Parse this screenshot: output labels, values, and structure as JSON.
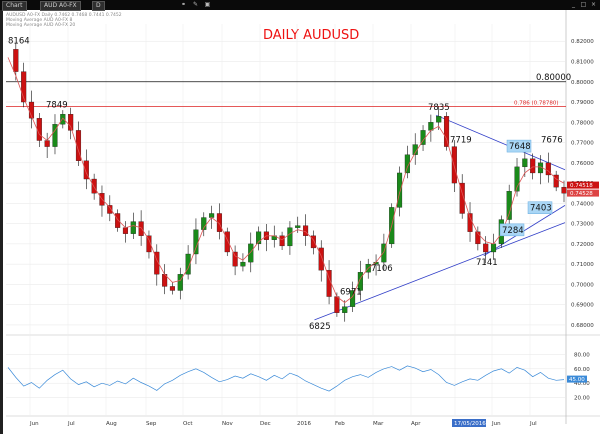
{
  "window": {
    "chart_tab": "Chart",
    "symbol_tab": "AUD A0-FX",
    "interval_tab": "D"
  },
  "header_info": {
    "line1": "AUDUSD A0-FX   Daily   0.7462   0.7468   0.7441   0.7452",
    "line2": "Moving Average   AUD A0-FX 8",
    "line3": "Moving Average   AUD A0-FX 20"
  },
  "chart_data": {
    "type": "candlestick",
    "title": "DAILY AUDUSD",
    "colors": {
      "up": "#1a8a1a",
      "down": "#cc1111",
      "ma": "#dd5555",
      "rsi": "#3a8ad8",
      "title": "#e11111"
    },
    "price_axis": {
      "ticks": [
        "0.82000",
        "0.81000",
        "0.80000",
        "0.79000",
        "0.78000",
        "0.77000",
        "0.76000",
        "0.75000",
        "0.74000",
        "0.73000",
        "0.72000",
        "0.71000",
        "0.70000",
        "0.69000",
        "0.68000"
      ],
      "ylim": [
        0.6775,
        0.8285
      ],
      "current_price_tags": [
        "0.74518",
        "0.74528"
      ]
    },
    "x_axis": {
      "labels": [
        "Jun",
        "Jul",
        "Aug",
        "Sep",
        "Oct",
        "Nov",
        "Dec",
        "2016",
        "Feb",
        "Mar",
        "Apr",
        "May",
        "Jun",
        "Jul"
      ],
      "date_tag": "17/05/2016"
    },
    "horizontal_lines": [
      {
        "label": "0.80000",
        "value": 0.8,
        "color": "#111111"
      },
      {
        "label": "0.786 (0.78780)",
        "value": 0.7878,
        "color": "#dd2222"
      }
    ],
    "annotations": [
      {
        "text": "8164",
        "price": 0.8164,
        "boxed": false
      },
      {
        "text": "7849",
        "price": 0.7849,
        "boxed": false
      },
      {
        "text": "6825",
        "price": 0.6825,
        "boxed": false
      },
      {
        "text": "6971",
        "price": 0.6971,
        "boxed": false
      },
      {
        "text": "7106",
        "price": 0.7106,
        "boxed": false
      },
      {
        "text": "7835",
        "price": 0.7835,
        "boxed": false
      },
      {
        "text": "7719",
        "price": 0.7719,
        "boxed": false
      },
      {
        "text": "7648",
        "price": 0.7648,
        "boxed": true
      },
      {
        "text": "7676",
        "price": 0.7676,
        "boxed": false
      },
      {
        "text": "7403",
        "price": 0.7403,
        "boxed": true
      },
      {
        "text": "7284",
        "price": 0.7284,
        "boxed": true
      },
      {
        "text": "7141",
        "price": 0.7141,
        "boxed": false
      }
    ],
    "ma_path": [
      0.812,
      0.803,
      0.792,
      0.783,
      0.774,
      0.771,
      0.776,
      0.782,
      0.778,
      0.766,
      0.755,
      0.748,
      0.742,
      0.738,
      0.732,
      0.728,
      0.729,
      0.728,
      0.722,
      0.712,
      0.705,
      0.701,
      0.702,
      0.708,
      0.718,
      0.728,
      0.733,
      0.73,
      0.722,
      0.714,
      0.712,
      0.716,
      0.721,
      0.724,
      0.724,
      0.722,
      0.725,
      0.727,
      0.726,
      0.722,
      0.714,
      0.703,
      0.694,
      0.691,
      0.694,
      0.703,
      0.708,
      0.711,
      0.716,
      0.729,
      0.745,
      0.758,
      0.765,
      0.771,
      0.776,
      0.778,
      0.772,
      0.758,
      0.745,
      0.733,
      0.725,
      0.721,
      0.72,
      0.725,
      0.735,
      0.748,
      0.755,
      0.758,
      0.758,
      0.756,
      0.752,
      0.75
    ],
    "price_path": [
      0.816,
      0.805,
      0.79,
      0.782,
      0.771,
      0.768,
      0.779,
      0.784,
      0.776,
      0.761,
      0.752,
      0.745,
      0.739,
      0.735,
      0.728,
      0.725,
      0.731,
      0.724,
      0.716,
      0.705,
      0.699,
      0.697,
      0.705,
      0.715,
      0.727,
      0.733,
      0.735,
      0.726,
      0.716,
      0.709,
      0.711,
      0.72,
      0.726,
      0.722,
      0.724,
      0.719,
      0.728,
      0.729,
      0.724,
      0.718,
      0.707,
      0.694,
      0.686,
      0.689,
      0.697,
      0.706,
      0.71,
      0.711,
      0.72,
      0.738,
      0.755,
      0.764,
      0.769,
      0.776,
      0.78,
      0.783,
      0.768,
      0.75,
      0.735,
      0.726,
      0.72,
      0.716,
      0.72,
      0.732,
      0.746,
      0.758,
      0.762,
      0.755,
      0.76,
      0.754,
      0.748,
      0.745
    ],
    "rsi": {
      "ticks": [
        "80.00",
        "60.00",
        "40.00",
        "20.00"
      ],
      "current": "45.00",
      "values": [
        62,
        48,
        36,
        41,
        33,
        44,
        52,
        58,
        46,
        38,
        42,
        35,
        40,
        37,
        43,
        39,
        47,
        41,
        36,
        30,
        39,
        44,
        51,
        56,
        60,
        55,
        48,
        42,
        45,
        50,
        47,
        53,
        49,
        44,
        51,
        46,
        54,
        50,
        43,
        38,
        33,
        29,
        36,
        44,
        49,
        52,
        48,
        55,
        60,
        63,
        58,
        64,
        61,
        56,
        59,
        52,
        41,
        37,
        42,
        46,
        44,
        51,
        57,
        60,
        54,
        62,
        58,
        49,
        55,
        47,
        44,
        45
      ],
      "ylim": [
        0,
        100
      ]
    },
    "trendlines": [
      {
        "name": "upper",
        "from": [
          "2016-04-21",
          0.7835
        ],
        "to": [
          "2016-07-29",
          0.7566
        ]
      },
      {
        "name": "support-long",
        "from": [
          "2016-01-15",
          0.6825
        ],
        "to": [
          "2016-07-29",
          0.7305
        ]
      },
      {
        "name": "support-short",
        "from": [
          "2016-05-24",
          0.7141
        ],
        "to": [
          "2016-07-29",
          0.739
        ]
      }
    ]
  }
}
